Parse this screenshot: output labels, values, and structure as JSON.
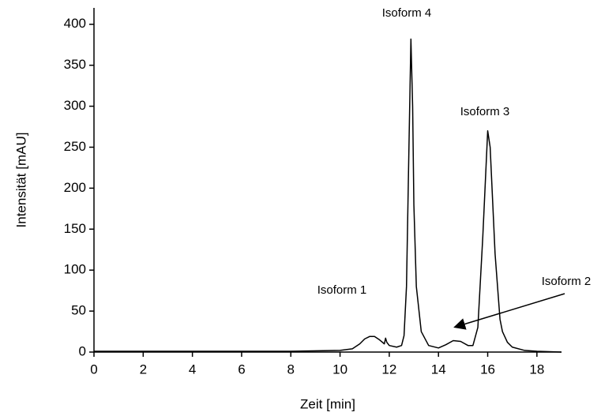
{
  "chart_data": {
    "type": "line",
    "x_label": "Zeit [min]",
    "y_label": "Intensität [mAU]",
    "x": [
      0,
      2,
      4,
      6,
      8,
      10,
      10.5,
      10.8,
      11,
      11.2,
      11.4,
      11.6,
      11.8,
      11.85,
      11.9,
      12.0,
      12.3,
      12.5,
      12.6,
      12.7,
      12.8,
      12.88,
      12.95,
      13.0,
      13.1,
      13.3,
      13.6,
      14.0,
      14.3,
      14.6,
      14.9,
      15.2,
      15.4,
      15.6,
      15.8,
      16.0,
      16.1,
      16.3,
      16.5,
      16.6,
      16.8,
      17.0,
      17.5,
      18,
      19
    ],
    "values": [
      1,
      1,
      1,
      1,
      1,
      2,
      4,
      10,
      16,
      19,
      19,
      15,
      10,
      17,
      12,
      8,
      6,
      8,
      20,
      80,
      250,
      382,
      300,
      180,
      80,
      25,
      8,
      5,
      9,
      14,
      13,
      8,
      8,
      30,
      140,
      270,
      250,
      120,
      40,
      25,
      12,
      6,
      2,
      1,
      0
    ],
    "color": "#000000",
    "xlim": [
      0,
      19
    ],
    "xticks": [
      0,
      2,
      4,
      6,
      8,
      10,
      12,
      14,
      16,
      18
    ],
    "ylim": [
      0,
      420
    ],
    "yticks": [
      0,
      50,
      100,
      150,
      200,
      250,
      300,
      350,
      400
    ],
    "annotations": [
      "Isoform 4",
      "Isoform 3",
      "Isoform 1",
      "Isoform 2"
    ]
  }
}
